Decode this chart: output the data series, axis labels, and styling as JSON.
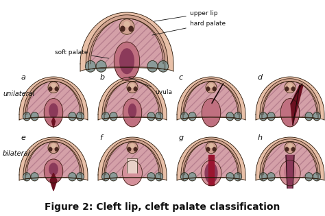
{
  "title": "Figure 2: Cleft lip, cleft palate classification",
  "title_fontsize": 10,
  "title_style": "bold",
  "background_color": "#ffffff",
  "fig_width": 4.74,
  "fig_height": 3.15,
  "dpi": 100,
  "labels": {
    "upper_lip": "upper lip",
    "hard_palate": "hard palate",
    "soft_palate": "soft palate",
    "uvula": "uvula",
    "unilateral": "unilateral",
    "bilateral": "bilateral"
  },
  "subplot_labels": [
    "a",
    "b",
    "c",
    "d",
    "e",
    "f",
    "g",
    "h"
  ],
  "label_fontsize": 8,
  "annotation_fontsize": 6.5,
  "section_fontsize": 7,
  "skin_color": "#e8c0a8",
  "skin_dark": "#c8906878",
  "palate_color": "#d4a0a8",
  "palate_hatch_color": "#b88090",
  "inner_palate_color": "#c09098",
  "dark_cavity_color": "#8b3a5a",
  "medium_cavity_color": "#c07080",
  "light_cavity_color": "#d4909a",
  "teeth_color": "#8a9a98",
  "outline_color": "#2a1808",
  "cleft_color": "#6b1020",
  "nose_color": "#d0a090",
  "nostril_color": "#4a2820",
  "dark_line_color": "#1a0808"
}
